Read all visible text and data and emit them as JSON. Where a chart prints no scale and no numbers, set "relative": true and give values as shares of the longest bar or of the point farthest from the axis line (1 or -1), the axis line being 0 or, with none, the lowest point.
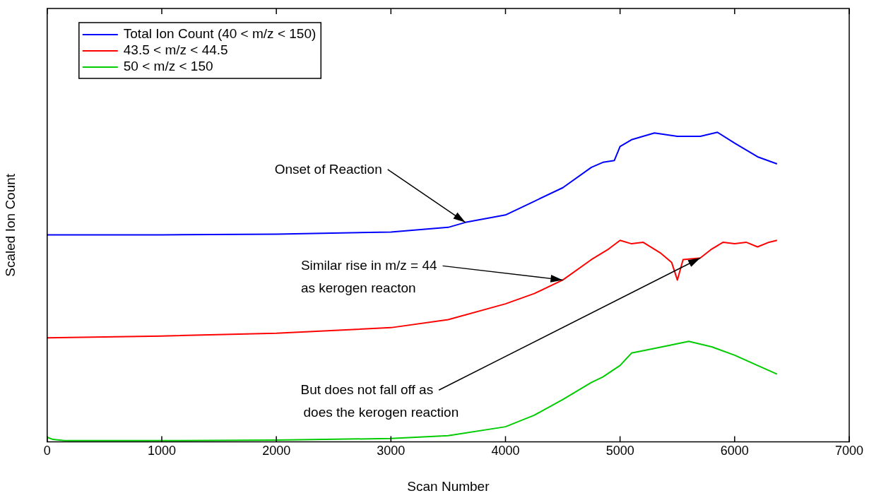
{
  "chart_data": {
    "type": "line",
    "xlabel": "Scan Number",
    "ylabel": "Scaled Ion Count",
    "xlim": [
      0,
      7000
    ],
    "xticks": [
      0,
      1000,
      2000,
      3000,
      4000,
      5000,
      6000,
      7000
    ],
    "relative": true,
    "tick_labels": "x",
    "legend": "top left",
    "marker": "none",
    "line_style": "solid",
    "series": [
      {
        "name": "Total Ion Count (40 < m/z < 150)",
        "color": "#0000ff",
        "x": [
          0,
          1000,
          2000,
          3000,
          3500,
          3650,
          4000,
          4250,
          4500,
          4750,
          4850,
          4950,
          5000,
          5100,
          5300,
          5500,
          5700,
          5850,
          6000,
          6200,
          6370
        ],
        "values": [
          0.669,
          0.669,
          0.671,
          0.678,
          0.693,
          0.709,
          0.733,
          0.777,
          0.821,
          0.887,
          0.903,
          0.909,
          0.954,
          0.976,
          0.998,
          0.987,
          0.987,
          1.0,
          0.965,
          0.921,
          0.898
        ]
      },
      {
        "name": "43.5 < m/z < 44.5",
        "color": "#ff0000",
        "x": [
          0,
          1000,
          2000,
          3000,
          3500,
          4000,
          4250,
          4500,
          4750,
          4900,
          5000,
          5100,
          5200,
          5350,
          5450,
          5500,
          5550,
          5700,
          5800,
          5900,
          6000,
          6100,
          6200,
          6300,
          6370
        ],
        "values": [
          0.336,
          0.342,
          0.351,
          0.369,
          0.395,
          0.446,
          0.479,
          0.523,
          0.589,
          0.623,
          0.651,
          0.64,
          0.645,
          0.611,
          0.58,
          0.523,
          0.589,
          0.594,
          0.623,
          0.645,
          0.64,
          0.645,
          0.63,
          0.645,
          0.651
        ]
      },
      {
        "name": "50 < m/z < 150",
        "color": "#00cc00",
        "x": [
          0,
          50,
          150,
          1000,
          2000,
          3000,
          3500,
          4000,
          4250,
          4500,
          4750,
          4850,
          5000,
          5100,
          5300,
          5600,
          5800,
          6000,
          6200,
          6370
        ],
        "values": [
          0.015,
          0.008,
          0.004,
          0.004,
          0.006,
          0.011,
          0.02,
          0.049,
          0.086,
          0.137,
          0.192,
          0.21,
          0.247,
          0.287,
          0.302,
          0.325,
          0.307,
          0.28,
          0.247,
          0.219
        ]
      }
    ],
    "annotations": [
      {
        "text": "Onset of Reaction",
        "x": 3650,
        "y": 0.709
      },
      {
        "text": "Similar rise in m/z = 44\nas kerogen reacton",
        "x": 4500,
        "y": 0.523
      },
      {
        "text": "But does not fall off as\ndoes the kerogen reaction",
        "x": 5700,
        "y": 0.594
      }
    ]
  }
}
